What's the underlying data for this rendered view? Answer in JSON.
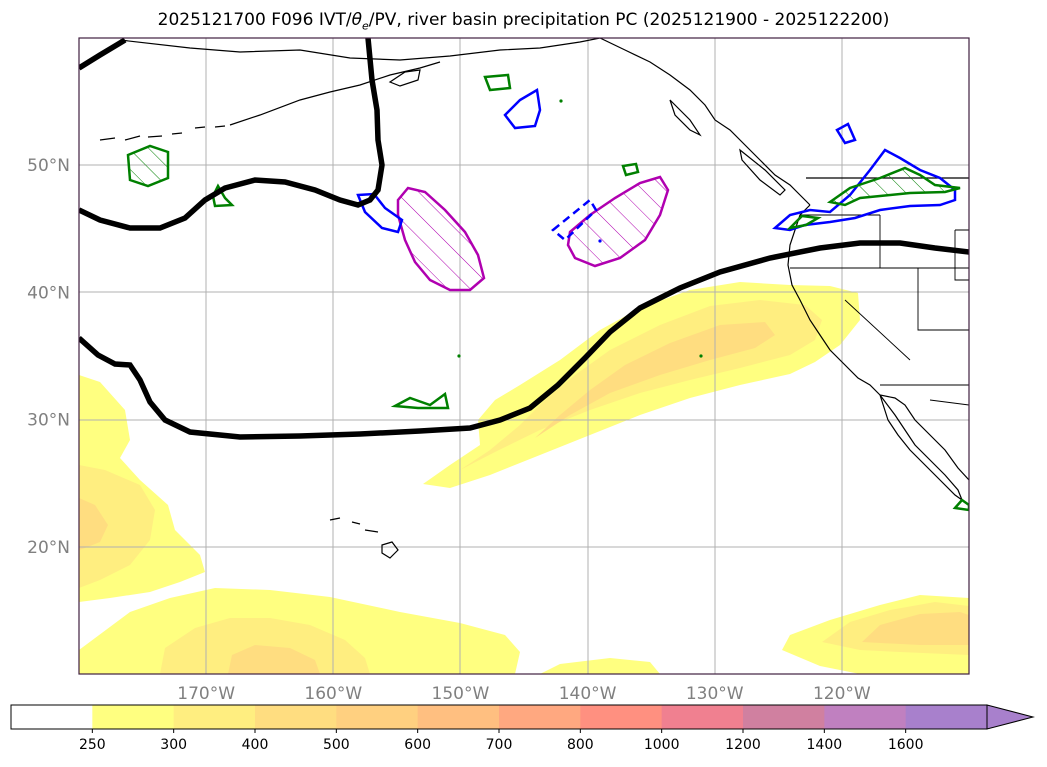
{
  "title": {
    "prefix": "2025121700 F096 IVT/",
    "theta": "θ",
    "theta_sub": "e",
    "suffix": "/PV, river basin precipitation PC (2025121900 - 2025122200)"
  },
  "map": {
    "lat_labels": [
      {
        "text": "50°N",
        "lat": 50
      },
      {
        "text": "40°N",
        "lat": 40
      },
      {
        "text": "30°N",
        "lat": 30
      },
      {
        "text": "20°N",
        "lat": 20
      }
    ],
    "lon_labels": [
      {
        "text": "170°W",
        "lon": -170
      },
      {
        "text": "160°W",
        "lon": -160
      },
      {
        "text": "150°W",
        "lon": -150
      },
      {
        "text": "140°W",
        "lon": -140
      },
      {
        "text": "130°W",
        "lon": -130
      },
      {
        "text": "120°W",
        "lon": -120
      }
    ],
    "lon_range": [
      -180,
      -110
    ],
    "lat_range": [
      10,
      60
    ],
    "colors": {
      "ivt_250": "#ffff80",
      "ivt_300": "#ffee80",
      "ivt_400": "#ffdd80",
      "pv_contour": "#000000",
      "precip_green": "#008000",
      "precip_blue": "#0000ff",
      "precip_magenta": "#b000b0",
      "grid": "#b0b0b0",
      "coast": "#000000"
    }
  },
  "colorbar": {
    "levels": [
      "250",
      "300",
      "400",
      "500",
      "600",
      "700",
      "800",
      "1000",
      "1200",
      "1400",
      "1600"
    ],
    "colors": [
      "#ffffff",
      "#ffff80",
      "#ffee80",
      "#ffdd80",
      "#ffd080",
      "#ffbf80",
      "#ffa880",
      "#ff9080",
      "#f08090",
      "#d080a0",
      "#c080c0",
      "#a880cc"
    ]
  }
}
